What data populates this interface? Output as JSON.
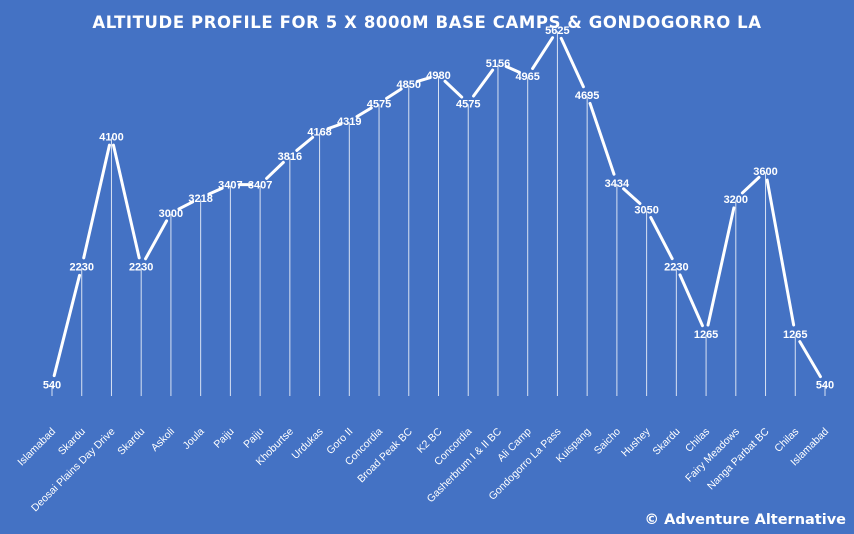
{
  "colors": {
    "background": "#4472c4",
    "line": "#ffffff",
    "text": "#ffffff",
    "droplines": "#d9e2f3"
  },
  "credit": "© Adventure Alternative",
  "chart_data": {
    "type": "line",
    "title": "ALTITUDE PROFILE FOR 5 X 8000M BASE CAMPS & GONDOGORRO LA",
    "xlabel": "",
    "ylabel": "",
    "grid": false,
    "legend": "none",
    "drop_lines": true,
    "data_labels": true,
    "ylim": [
      0,
      6000
    ],
    "categories": [
      "Islamabad",
      "Skardu",
      "Deosai Plains Day Drive",
      "Skardu",
      "Askoli",
      "Joula",
      "Paiju",
      "Paiju",
      "Khoburtse",
      "Urdukas",
      "Goro II",
      "Concordia",
      "Broad Peak BC",
      "K2 BC",
      "Concordia",
      "Gasherbrum I & II BC",
      "Ali Camp",
      "Gondogorro La Pass",
      "Kuispang",
      "Saicho",
      "Hushey",
      "Skardu",
      "Chilas",
      "Fairy Meadows",
      "Nanga Parbat BC",
      "Chilas",
      "Islamabad"
    ],
    "values": [
      540,
      2230,
      4100,
      2230,
      3000,
      3218,
      3407,
      3407,
      3816,
      4168,
      4319,
      4575,
      4850,
      4980,
      4575,
      5156,
      4965,
      5625,
      4695,
      3434,
      3050,
      2230,
      1265,
      3200,
      3600,
      1265,
      540
    ],
    "label_values": [
      "540",
      "2230",
      "4100",
      "2230",
      "3000",
      "3218",
      "3407",
      "3407",
      "3816",
      "4168",
      "4319",
      "4575",
      "4850",
      "4980",
      "4575",
      "5156",
      "4965",
      "5625",
      "4695",
      "3434",
      "3050",
      "2230",
      "1265",
      "3200",
      "3600",
      "1265",
      "540"
    ]
  }
}
